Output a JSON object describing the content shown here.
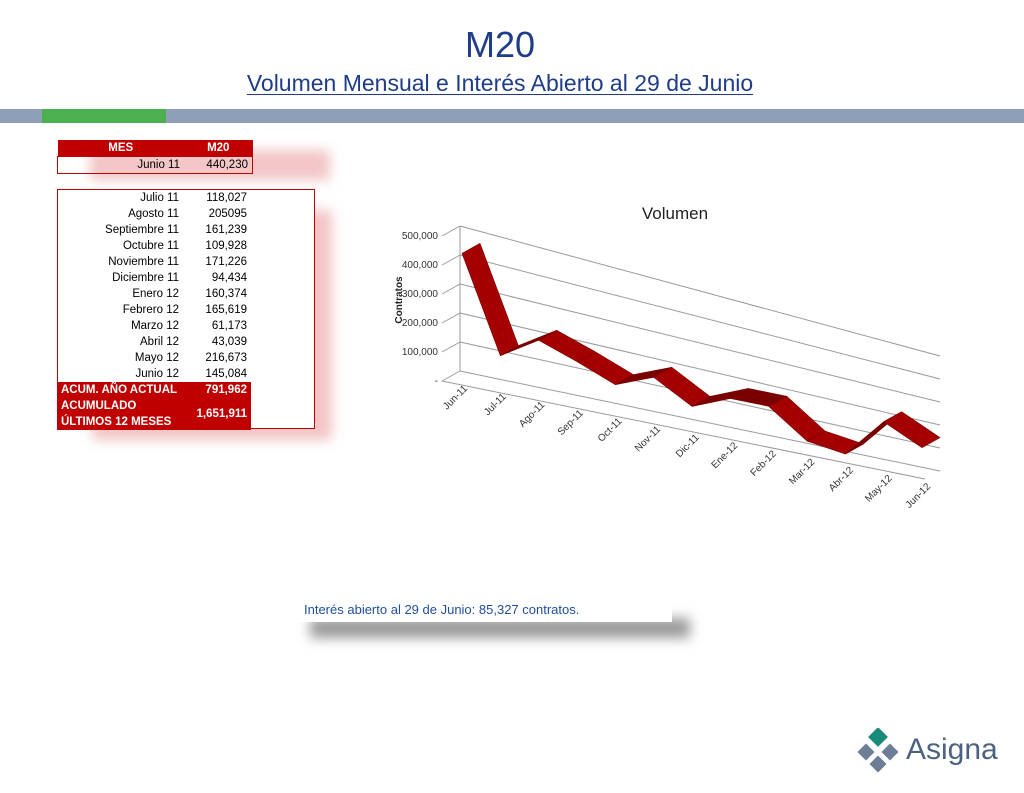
{
  "header": {
    "title": "M20",
    "subtitle": "Volumen Mensual e Interés Abierto al 29 de Junio"
  },
  "table": {
    "col_mes": "MES",
    "col_m20": "M20",
    "first_row": {
      "mes": "Junio 11",
      "val": "440,230"
    },
    "rows": [
      {
        "mes": "Julio 11",
        "val": "118,027"
      },
      {
        "mes": "Agosto 11",
        "val": "205095"
      },
      {
        "mes": "Septiembre 11",
        "val": "161,239"
      },
      {
        "mes": "Octubre 11",
        "val": "109,928"
      },
      {
        "mes": "Noviembre 11",
        "val": "171,226"
      },
      {
        "mes": "Diciembre 11",
        "val": "94,434"
      },
      {
        "mes": "Enero 12",
        "val": "160,374"
      },
      {
        "mes": "Febrero 12",
        "val": "165,619"
      },
      {
        "mes": "Marzo 12",
        "val": "61,173"
      },
      {
        "mes": "Abril 12",
        "val": "43,039"
      },
      {
        "mes": "Mayo 12",
        "val": "216,673"
      },
      {
        "mes": "Junio 12",
        "val": "145,084"
      }
    ],
    "totals": [
      {
        "label": "ACUM. AÑO ACTUAL",
        "val": "791,962"
      },
      {
        "label": "ACUMULADO ÚLTIMOS 12 MESES",
        "val": "1,651,911"
      }
    ]
  },
  "chart_data": {
    "type": "line",
    "title": "Volumen",
    "ylabel": "Contratos",
    "xlabel": "",
    "ylim": [
      0,
      500000
    ],
    "y_ticks": [
      {
        "value": 0,
        "label": "-"
      },
      {
        "value": 100000,
        "label": "100,000"
      },
      {
        "value": 200000,
        "label": "200,000"
      },
      {
        "value": 300000,
        "label": "300,000"
      },
      {
        "value": 400000,
        "label": "400,000"
      },
      {
        "value": 500000,
        "label": "500,000"
      }
    ],
    "categories": [
      "Jun-11",
      "Jul-11",
      "Ago-11",
      "Sep-11",
      "Oct-11",
      "Nov-11",
      "Dic-11",
      "Ene-12",
      "Feb-12",
      "Mar-12",
      "Abr-12",
      "May-12",
      "Jun-12"
    ],
    "values": [
      440230,
      118027,
      205095,
      161239,
      109928,
      171226,
      94434,
      160374,
      165619,
      61173,
      43039,
      216673,
      145084
    ],
    "color": "#a50000"
  },
  "note": {
    "text": "Interés abierto al 29 de Junio: 85,327 contratos."
  },
  "logo": {
    "text": "Asigna"
  }
}
